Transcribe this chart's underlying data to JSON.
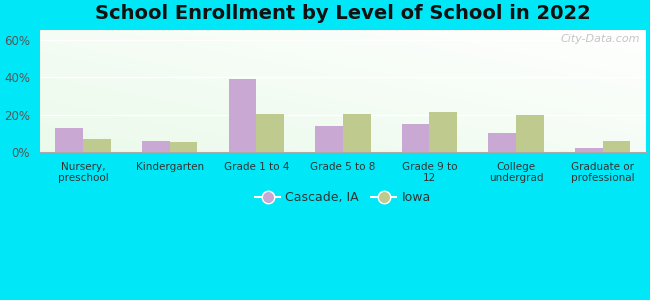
{
  "title": "School Enrollment by Level of School in 2022",
  "categories": [
    "Nursery,\npreschool",
    "Kindergarten",
    "Grade 1 to 4",
    "Grade 5 to 8",
    "Grade 9 to\n12",
    "College\nundergrad",
    "Graduate or\nprofessional"
  ],
  "cascade_values": [
    13,
    6,
    39,
    14,
    15,
    10,
    2
  ],
  "iowa_values": [
    7,
    5.5,
    20.5,
    20.5,
    21.5,
    20,
    6
  ],
  "cascade_color": "#c9a8d4",
  "iowa_color": "#bfca8e",
  "ylim": [
    0,
    65
  ],
  "yticks": [
    0,
    20,
    40,
    60
  ],
  "ytick_labels": [
    "0%",
    "20%",
    "40%",
    "60%"
  ],
  "background_color": "#00e8f8",
  "title_fontsize": 14,
  "legend_labels": [
    "Cascade, IA",
    "Iowa"
  ],
  "watermark": "City-Data.com",
  "bar_width": 0.32
}
